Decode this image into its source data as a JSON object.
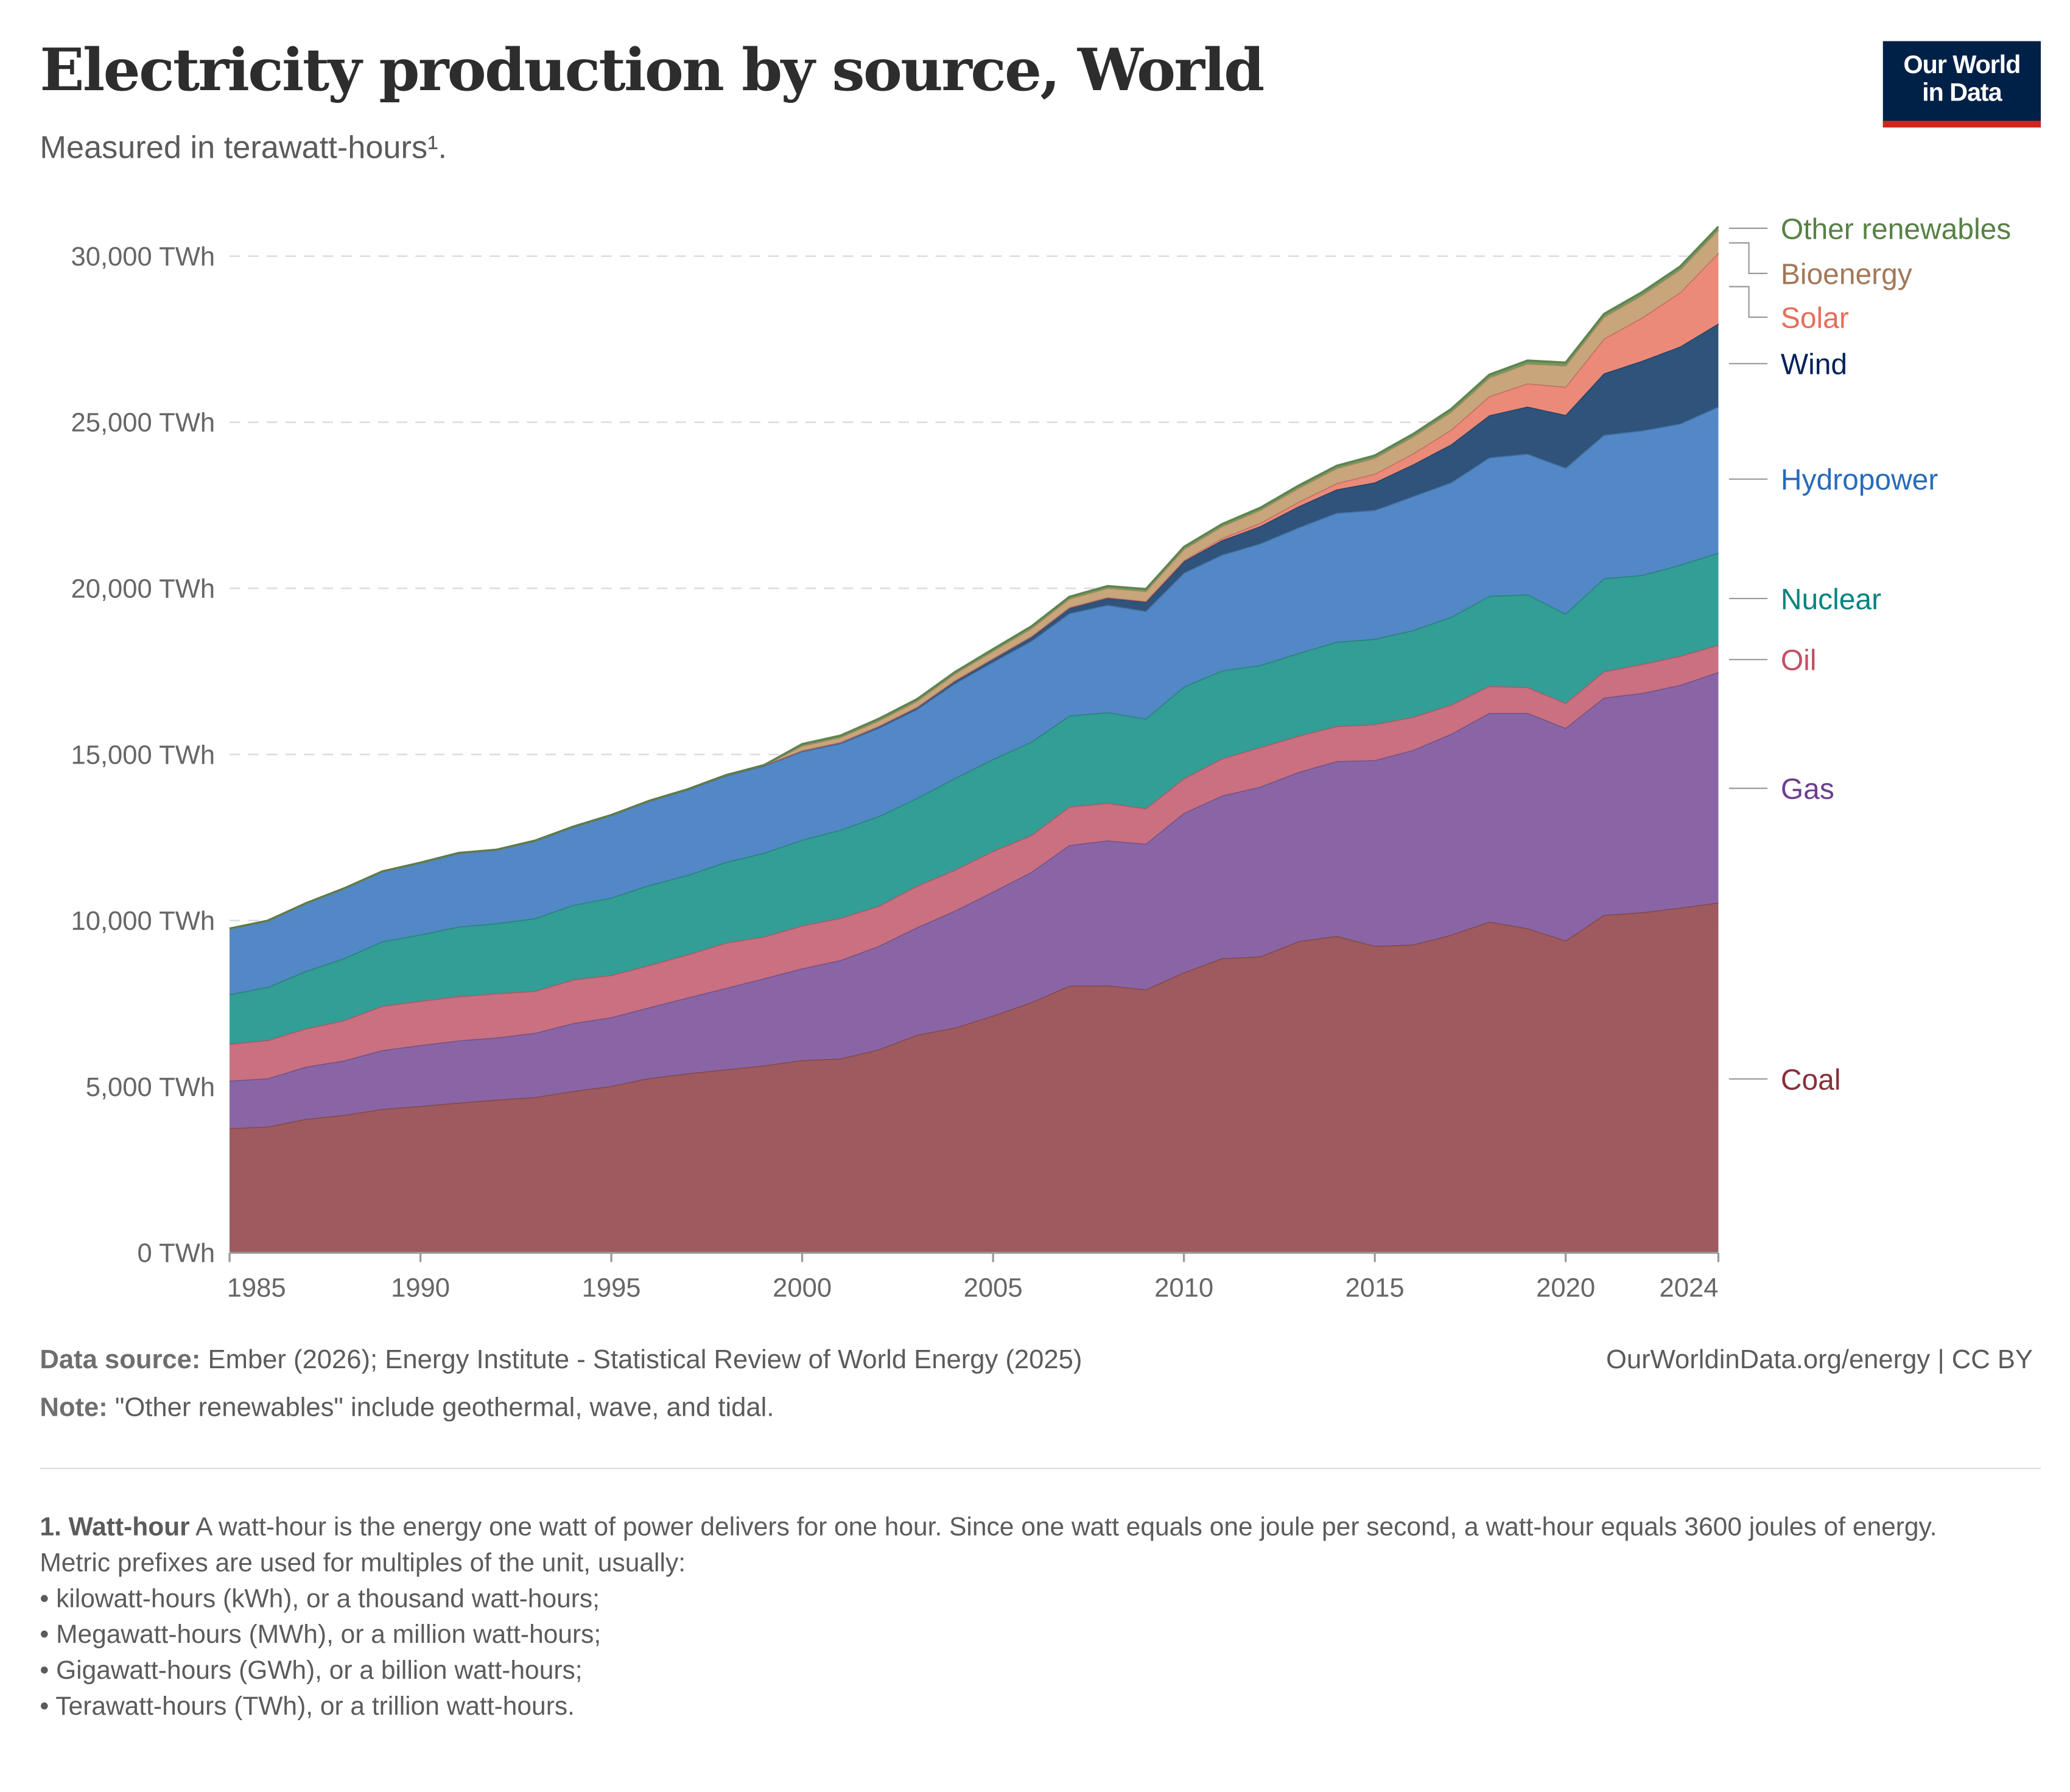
{
  "header": {
    "title": "Electricity production by source, World",
    "subtitle": "Measured in terawatt-hours¹.",
    "logo_line1": "Our World",
    "logo_line2": "in Data"
  },
  "chart_data": {
    "type": "area",
    "stacked": true,
    "title": "Electricity production by source, World",
    "subtitle": "Measured in terawatt-hours¹.",
    "ylim": [
      0,
      31000
    ],
    "xlim": [
      1985,
      2024
    ],
    "y_ticks": [
      0,
      5000,
      10000,
      15000,
      20000,
      25000,
      30000
    ],
    "y_tick_labels": [
      "0 TWh",
      "5,000 TWh",
      "10,000 TWh",
      "15,000 TWh",
      "20,000 TWh",
      "25,000 TWh",
      "30,000 TWh"
    ],
    "x_ticks": [
      1985,
      1990,
      1995,
      2000,
      2005,
      2010,
      2015,
      2020,
      2024
    ],
    "x_tick_labels": [
      "1985",
      "1990",
      "1995",
      "2000",
      "2005",
      "2010",
      "2015",
      "2020",
      "2024"
    ],
    "grid": "horizontal dashed",
    "legend": "right, inline labels",
    "x": [
      1985,
      1986,
      1987,
      1988,
      1989,
      1990,
      1991,
      1992,
      1993,
      1994,
      1995,
      1996,
      1997,
      1998,
      1999,
      2000,
      2001,
      2002,
      2003,
      2004,
      2005,
      2006,
      2007,
      2008,
      2009,
      2010,
      2011,
      2012,
      2013,
      2014,
      2015,
      2016,
      2017,
      2018,
      2019,
      2020,
      2021,
      2022,
      2023,
      2024
    ],
    "series": [
      {
        "name": "Coal",
        "fill": "#9e5a5f",
        "label_color": "#883039",
        "values": [
          3750,
          3800,
          4030,
          4150,
          4330,
          4420,
          4520,
          4610,
          4690,
          4870,
          5020,
          5260,
          5400,
          5520,
          5640,
          5800,
          5850,
          6120,
          6560,
          6780,
          7140,
          7540,
          8040,
          8050,
          7930,
          8440,
          8870,
          8920,
          9380,
          9540,
          9240,
          9280,
          9570,
          9970,
          9770,
          9400,
          10170,
          10250,
          10390,
          10540
        ]
      },
      {
        "name": "Gas",
        "fill": "#8a65a6",
        "label_color": "#6d3e91",
        "values": [
          1430,
          1450,
          1570,
          1640,
          1770,
          1830,
          1870,
          1870,
          1930,
          2040,
          2070,
          2130,
          2280,
          2450,
          2620,
          2760,
          2960,
          3110,
          3230,
          3520,
          3730,
          3920,
          4230,
          4360,
          4380,
          4800,
          4890,
          5110,
          5090,
          5260,
          5590,
          5850,
          6050,
          6280,
          6480,
          6400,
          6540,
          6600,
          6700,
          6940
        ]
      },
      {
        "name": "Oil",
        "fill": "#ca7080",
        "label_color": "#c15065",
        "values": [
          1110,
          1150,
          1150,
          1210,
          1330,
          1330,
          1330,
          1330,
          1260,
          1310,
          1270,
          1270,
          1300,
          1360,
          1260,
          1290,
          1270,
          1210,
          1250,
          1230,
          1220,
          1110,
          1160,
          1130,
          1070,
          1040,
          1120,
          1190,
          1090,
          1050,
          1080,
          1000,
          880,
          810,
          780,
          750,
          790,
          870,
          880,
          820
        ]
      },
      {
        "name": "Nuclear",
        "fill": "#329e96",
        "label_color": "#00847e",
        "values": [
          1490,
          1600,
          1730,
          1870,
          1940,
          2000,
          2100,
          2110,
          2190,
          2250,
          2330,
          2410,
          2390,
          2430,
          2520,
          2580,
          2650,
          2700,
          2640,
          2760,
          2770,
          2810,
          2740,
          2730,
          2700,
          2760,
          2650,
          2470,
          2490,
          2540,
          2570,
          2610,
          2640,
          2710,
          2790,
          2690,
          2800,
          2680,
          2740,
          2770
        ]
      },
      {
        "name": "Hydropower",
        "fill": "#5288c6",
        "label_color": "#286bbb",
        "values": [
          1980,
          2000,
          2040,
          2100,
          2110,
          2160,
          2210,
          2210,
          2330,
          2350,
          2480,
          2530,
          2570,
          2600,
          2620,
          2660,
          2600,
          2660,
          2680,
          2850,
          2930,
          3040,
          3080,
          3230,
          3240,
          3430,
          3480,
          3660,
          3780,
          3880,
          3880,
          4030,
          4050,
          4170,
          4230,
          4390,
          4320,
          4350,
          4250,
          4400
        ]
      },
      {
        "name": "Wind",
        "fill": "#30537b",
        "label_color": "#002258",
        "values": [
          0,
          0,
          0,
          0,
          0,
          4,
          4,
          5,
          6,
          7,
          8,
          9,
          12,
          16,
          21,
          31,
          38,
          52,
          63,
          85,
          104,
          133,
          171,
          220,
          276,
          342,
          437,
          522,
          636,
          707,
          831,
          958,
          1140,
          1270,
          1420,
          1590,
          1850,
          2100,
          2320,
          2500
        ]
      },
      {
        "name": "Solar",
        "fill": "#eb8a79",
        "label_color": "#e56e5a",
        "values": [
          0,
          0,
          0,
          0,
          0,
          0,
          0,
          0,
          0,
          0,
          0,
          0,
          0,
          0,
          0,
          1,
          2,
          2,
          3,
          3,
          4,
          6,
          8,
          12,
          20,
          32,
          63,
          99,
          135,
          190,
          256,
          328,
          445,
          570,
          700,
          850,
          1040,
          1300,
          1630,
          2130
        ]
      },
      {
        "name": "Bioenergy",
        "fill": "#c8a57b",
        "label_color": "#a2785a",
        "values": [
          0,
          0,
          0,
          0,
          0,
          0,
          0,
          0,
          0,
          0,
          0,
          0,
          0,
          0,
          0,
          140,
          150,
          165,
          180,
          200,
          220,
          240,
          260,
          280,
          300,
          340,
          360,
          390,
          420,
          450,
          480,
          510,
          540,
          570,
          600,
          640,
          660,
          680,
          690,
          700
        ]
      },
      {
        "name": "Other renewables",
        "fill": "#6d9a5a",
        "label_color": "#578145",
        "values": [
          0,
          0,
          0,
          0,
          0,
          0,
          0,
          0,
          0,
          0,
          0,
          0,
          0,
          0,
          0,
          52,
          53,
          54,
          55,
          57,
          58,
          60,
          61,
          63,
          65,
          67,
          69,
          70,
          72,
          74,
          78,
          82,
          86,
          88,
          90,
          90,
          91,
          92,
          93,
          95
        ]
      }
    ]
  },
  "footer": {
    "source_label": "Data source:",
    "source_text": " Ember (2026); Energy Institute - Statistical Review of World Energy (2025)",
    "attribution": "OurWorldinData.org/energy | CC BY",
    "note_label": "Note:",
    "note_text": " \"Other renewables\" include geothermal, wave, and tidal."
  },
  "footnote": {
    "term": "1. Watt-hour",
    "definition": " A watt-hour is the energy one watt of power delivers for one hour. Since one watt equals one joule per second, a watt-hour equals 3600 joules of energy.",
    "intro": "Metric prefixes are used for multiples of the unit, usually:",
    "items": [
      "• kilowatt-hours (kWh), or a thousand watt-hours;",
      "• Megawatt-hours (MWh), or a million watt-hours;",
      "• Gigawatt-hours (GWh), or a billion watt-hours;",
      "• Terawatt-hours (TWh), or a trillion watt-hours."
    ]
  }
}
